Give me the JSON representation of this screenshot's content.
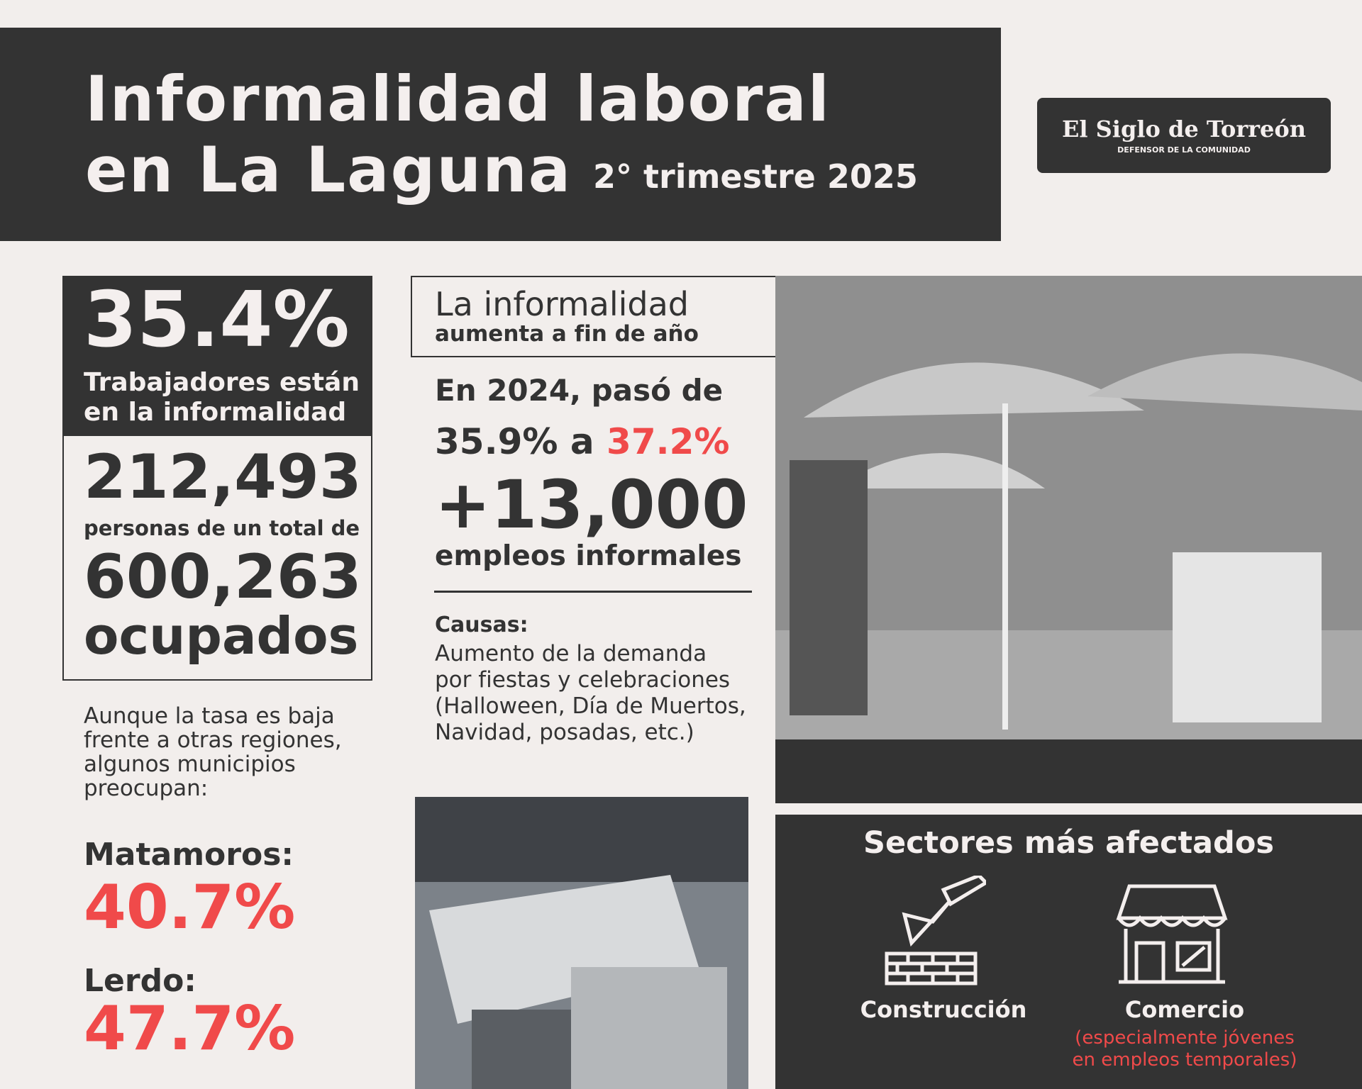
{
  "header": {
    "title_line1": "Informalidad laboral",
    "title_line2": "en La Laguna",
    "period": "2° trimestre 2025"
  },
  "logo": {
    "name": "El Siglo de Torreón",
    "tagline": "DEFENSOR DE LA COMUNIDAD"
  },
  "summary": {
    "rate": "35.4%",
    "rate_label_1": "Trabajadores están",
    "rate_label_2": "en la informalidad",
    "count": "212,493",
    "count_label": "personas de un total de",
    "total": "600,263",
    "total_label": "ocupados"
  },
  "note": {
    "lines": [
      "Aunque la tasa es baja",
      "frente a otras regiones,",
      "algunos municipios",
      "preocupan:"
    ]
  },
  "municipalities": [
    {
      "name": "Matamoros:",
      "rate": "40.7%"
    },
    {
      "name": "Lerdo:",
      "rate": "47.7%"
    }
  ],
  "trend": {
    "heading_1": "La informalidad",
    "heading_2": "aumenta a fin de año",
    "line_1": "En 2024, pasó de",
    "from": "35.9% a",
    "to": "37.2%",
    "increase": "+13,000",
    "increase_label": "empleos informales"
  },
  "causes": {
    "title": "Causas:",
    "lines": [
      "Aumento de la demanda",
      "por fiestas y celebraciones",
      "(Halloween, Día de Muertos,",
      "Navidad, posadas, etc.)"
    ]
  },
  "sectors": {
    "title": "Sectores más afectados",
    "items": [
      {
        "name": "Construcción"
      },
      {
        "name": "Comercio",
        "note_lines": [
          "(especialmente jóvenes",
          "en empleos temporales)"
        ]
      }
    ]
  }
}
